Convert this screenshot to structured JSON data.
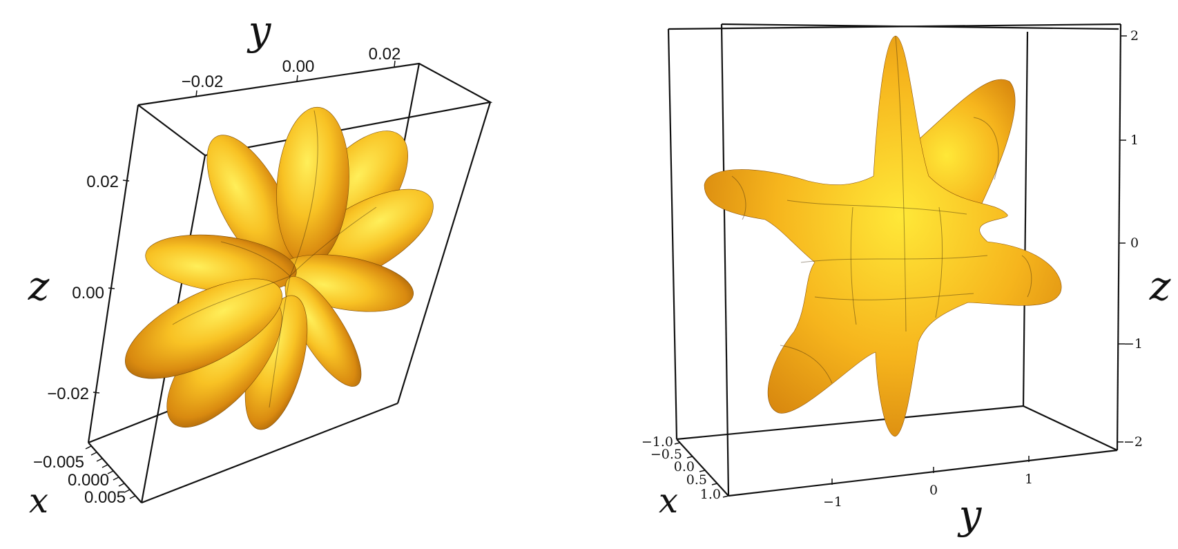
{
  "left_plot": {
    "axes": {
      "y_title": "y",
      "z_title": "z",
      "x_title": "x",
      "y_ticks": [
        "−0.02",
        "0.00",
        "0.02"
      ],
      "z_ticks": [
        "0.02",
        "0.00",
        "−0.02"
      ],
      "x_ticks": [
        "−0.005",
        "0.000",
        "0.005"
      ]
    }
  },
  "right_plot": {
    "axes": {
      "z_title": "z",
      "x_title": "x",
      "y_title": "y",
      "z_ticks": [
        "2",
        "1",
        "0",
        "−1",
        "−2"
      ],
      "x_ticks": [
        "−1.0",
        "−0.5",
        "0.0",
        "0.5",
        "1.0"
      ],
      "y_ticks": [
        "−1",
        "0",
        "1"
      ]
    }
  },
  "colors": {
    "surface_light": "#ffe23a",
    "surface_mid": "#f5b01c",
    "surface_dark": "#a9650a"
  }
}
